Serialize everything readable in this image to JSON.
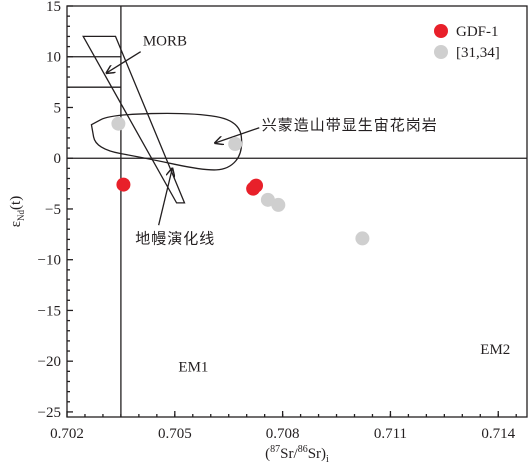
{
  "chart_data": {
    "type": "scatter",
    "xlabel": {
      "open": "(",
      "sup1": "87",
      "mid": "Sr/",
      "sup2": "86",
      "end": "Sr)",
      "sub": "i"
    },
    "ylabel": {
      "main": "ε",
      "sub": "Nd",
      "end": "(t)"
    },
    "xlim": [
      0.702,
      0.7148
    ],
    "ylim": [
      -25.5,
      15
    ],
    "x_ticks": [
      {
        "value": 0.702,
        "label": "0.702"
      },
      {
        "value": 0.705,
        "label": "0.705"
      },
      {
        "value": 0.708,
        "label": "0.708"
      },
      {
        "value": 0.711,
        "label": "0.711"
      },
      {
        "value": 0.714,
        "label": "0.714"
      }
    ],
    "y_ticks": [
      {
        "value": 15,
        "label": "15"
      },
      {
        "value": 10,
        "label": "10"
      },
      {
        "value": 5,
        "label": "5"
      },
      {
        "value": 0,
        "label": "0"
      },
      {
        "value": -5,
        "label": "−5"
      },
      {
        "value": -10,
        "label": "−10"
      },
      {
        "value": -15,
        "label": "−15"
      },
      {
        "value": -20,
        "label": "−20"
      },
      {
        "value": -25,
        "label": "−25"
      }
    ],
    "grid": false,
    "legend_position": "top-right",
    "series": [
      {
        "name": "GDF-1",
        "color": "#e8202a",
        "points": [
          {
            "x": 0.70357,
            "y": -2.6
          },
          {
            "x": 0.70718,
            "y": -3.0
          },
          {
            "x": 0.70726,
            "y": -2.7
          }
        ]
      },
      {
        "name": "[31,34]",
        "color": "#cfcfcf",
        "points": [
          {
            "x": 0.70343,
            "y": 3.4
          },
          {
            "x": 0.70668,
            "y": 1.4
          },
          {
            "x": 0.70759,
            "y": -4.1
          },
          {
            "x": 0.70788,
            "y": -4.6
          },
          {
            "x": 0.71022,
            "y": -7.9
          }
        ]
      }
    ],
    "reference_lines": [
      {
        "orientation": "horizontal",
        "y": 0
      },
      {
        "orientation": "vertical",
        "x": 0.7035
      }
    ],
    "morb_lines": [
      7,
      10
    ],
    "mantle_array_band": [
      {
        "x": 0.70245,
        "y": 12.0
      },
      {
        "x": 0.70335,
        "y": 12.0
      },
      {
        "x": 0.70527,
        "y": -4.4
      },
      {
        "x": 0.70505,
        "y": -4.4
      }
    ],
    "granite_field": [
      {
        "x": 0.70268,
        "y": 3.3
      },
      {
        "x": 0.7032,
        "y": 4.3
      },
      {
        "x": 0.7055,
        "y": 4.5
      },
      {
        "x": 0.7068,
        "y": 3.7
      },
      {
        "x": 0.7069,
        "y": 0.6
      },
      {
        "x": 0.7065,
        "y": -1.1
      },
      {
        "x": 0.7058,
        "y": -1.2
      },
      {
        "x": 0.7042,
        "y": 0.0
      },
      {
        "x": 0.7028,
        "y": 0.9
      },
      {
        "x": 0.70268,
        "y": 3.3
      }
    ],
    "annotations": [
      {
        "text": "MORB",
        "x": 0.70411,
        "y": 11.1,
        "arrow_from": {
          "x": 0.70405,
          "y": 10.5
        },
        "arrow_to": {
          "x": 0.7031,
          "y": 8.4
        },
        "cn": false
      },
      {
        "text": "兴蒙造山带显生宙花岗岩",
        "x": 0.70742,
        "y": 2.8,
        "arrow_from": {
          "x": 0.70735,
          "y": 3.0
        },
        "arrow_to": {
          "x": 0.70612,
          "y": 1.5
        },
        "cn": true
      },
      {
        "text": "地幔演化线",
        "x": 0.7039,
        "y": -8.4,
        "arrow_from": {
          "x": 0.70455,
          "y": -6.6
        },
        "arrow_to": {
          "x": 0.70493,
          "y": -1.0
        },
        "cn": true
      },
      {
        "text": "EM1",
        "x": 0.7051,
        "y": -21.0,
        "cn": false
      },
      {
        "text": "EM2",
        "x": 0.7135,
        "y": -19.3,
        "cn": false
      }
    ]
  }
}
